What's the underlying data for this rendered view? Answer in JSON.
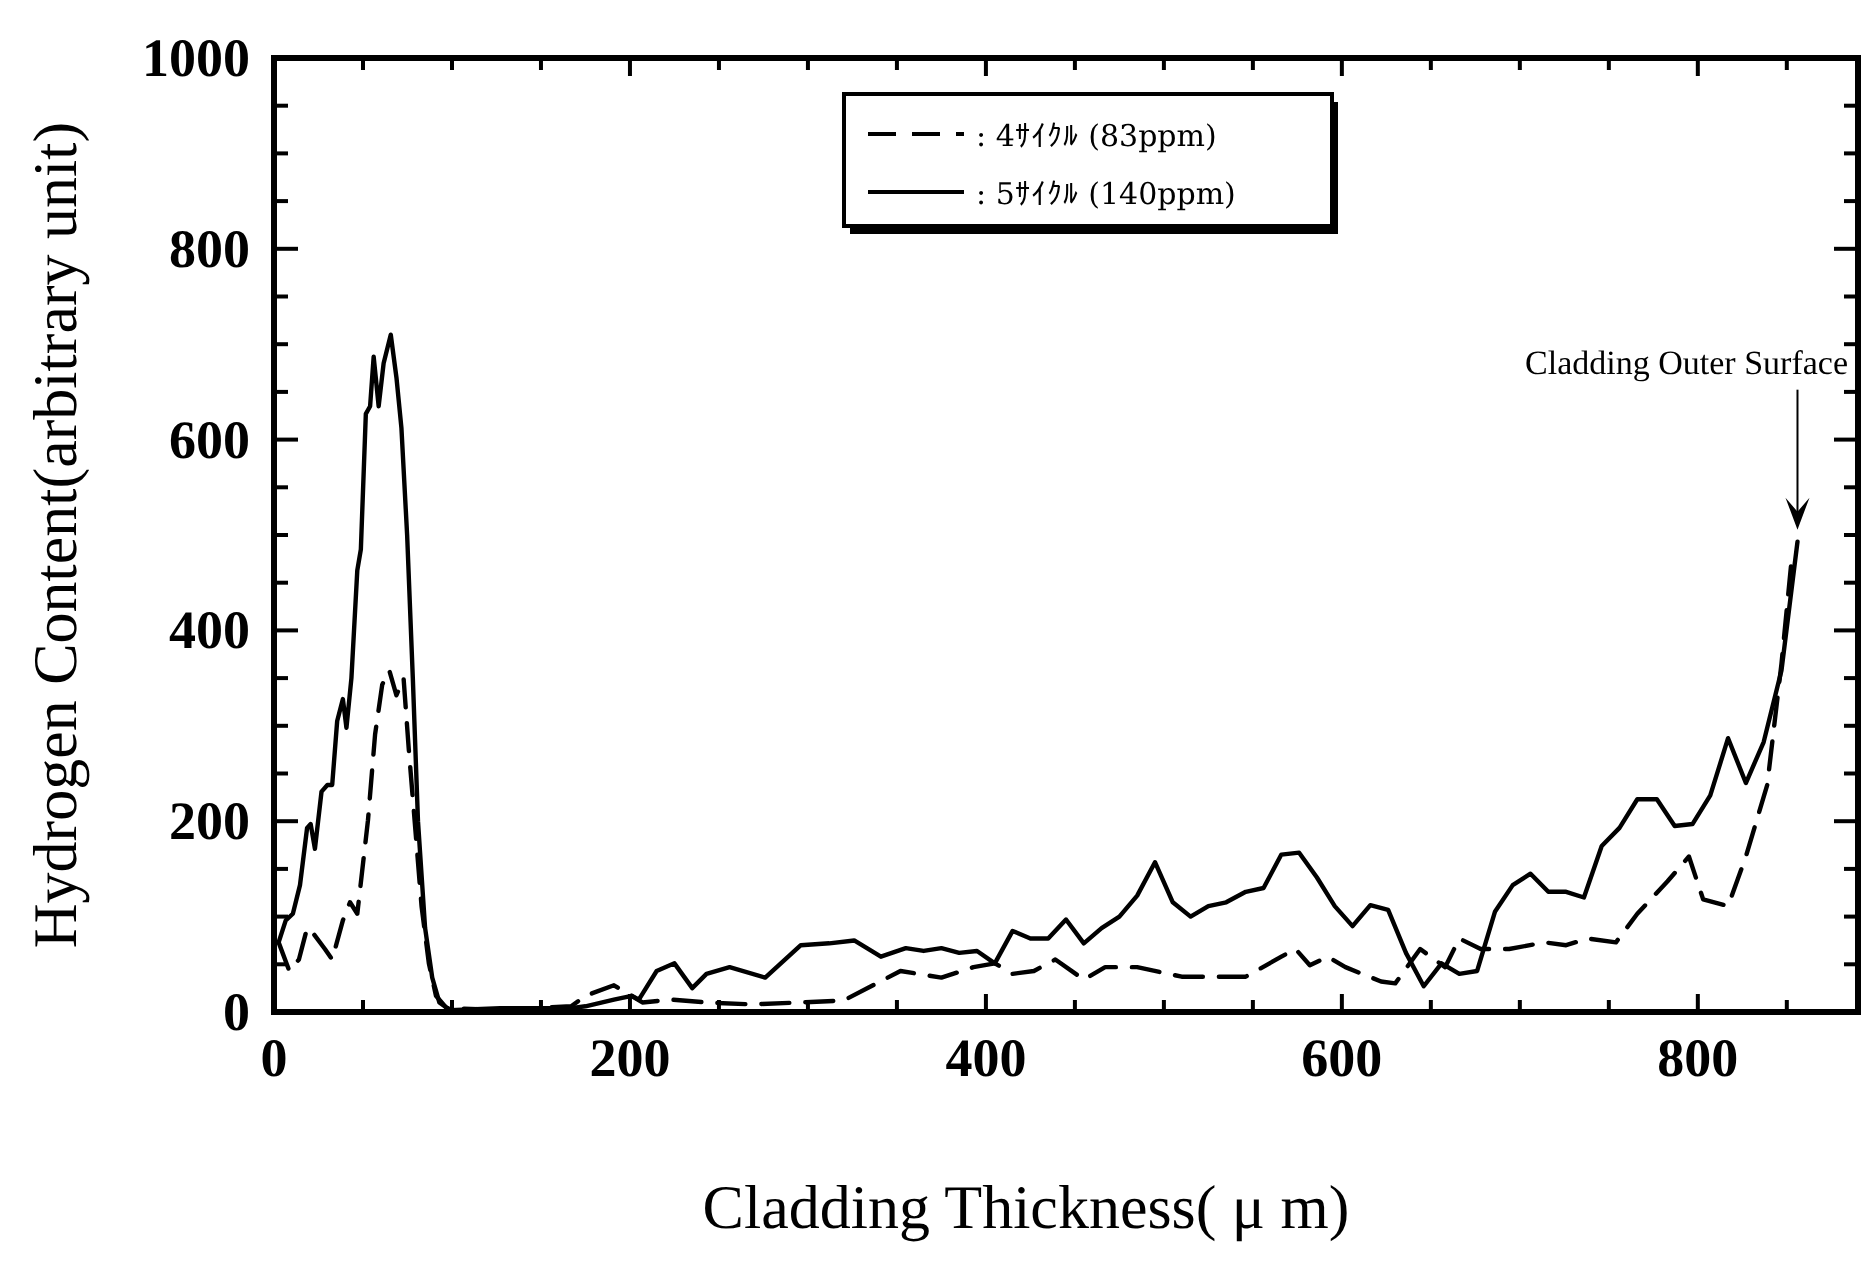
{
  "chart_data": {
    "type": "line",
    "xlabel": "Cladding Thickness( μ m)",
    "ylabel": "Hydrogen Content(arbitrary unit)",
    "xlim": [
      0,
      890
    ],
    "ylim": [
      0,
      1000
    ],
    "xticks": [
      0,
      {
        "value": 50,
        "label": null
      },
      {
        "value": 100,
        "label": null
      },
      {
        "value": 150,
        "label": null
      },
      200,
      {
        "value": 250,
        "label": null
      },
      {
        "value": 300,
        "label": null
      },
      {
        "value": 350,
        "label": null
      },
      400,
      {
        "value": 450,
        "label": null
      },
      {
        "value": 500,
        "label": null
      },
      {
        "value": 550,
        "label": null
      },
      600,
      {
        "value": 650,
        "label": null
      },
      {
        "value": 700,
        "label": null
      },
      {
        "value": 750,
        "label": null
      },
      800,
      {
        "value": 850,
        "label": null
      }
    ],
    "yticks": [
      0,
      {
        "value": 50,
        "label": null
      },
      {
        "value": 100,
        "label": null
      },
      {
        "value": 150,
        "label": null
      },
      200,
      {
        "value": 250,
        "label": null
      },
      {
        "value": 300,
        "label": null
      },
      {
        "value": 350,
        "label": null
      },
      400,
      {
        "value": 450,
        "label": null
      },
      {
        "value": 500,
        "label": null
      },
      {
        "value": 550,
        "label": null
      },
      600,
      {
        "value": 650,
        "label": null
      },
      {
        "value": 700,
        "label": null
      },
      {
        "value": 750,
        "label": null
      },
      800,
      {
        "value": 850,
        "label": null
      },
      {
        "value": 900,
        "label": null
      },
      {
        "value": 950,
        "label": null
      },
      1000
    ],
    "grid": false,
    "legend": "top",
    "marker": "none",
    "annotations": [
      {
        "text": "Cladding Outer Surface",
        "x": 856,
        "y": 493
      }
    ],
    "series": [
      {
        "name": ": 4ｻｲｸﾙ (83ppm)",
        "color": "#000000",
        "line_style": "dashed",
        "x": [
          2.6,
          8.6,
          14,
          18.6,
          22.6,
          28.6,
          32.7,
          38.7,
          42.7,
          46.8,
          52.8,
          56.8,
          60.8,
          64.8,
          68.8,
          72.8,
          75.7,
          79,
          82.9,
          87,
          91,
          97,
          127,
          167,
          175,
          191,
          207,
          223,
          243,
          268,
          296,
          320,
          352,
          375,
          393,
          405,
          415,
          427,
          439,
          455,
          467,
          485,
          510,
          546,
          566,
          574,
          582,
          592,
          602,
          622,
          630,
          644,
          658,
          666,
          678,
          694,
          714,
          726,
          738,
          754,
          766,
          783,
          795,
          803,
          817,
          827,
          839,
          847,
          853
        ],
        "values": [
          73,
          43,
          55,
          88,
          81,
          66,
          55,
          96,
          115,
          103,
          201,
          291,
          343,
          358,
          332,
          350,
          276,
          201,
          111,
          51,
          17,
          4,
          2,
          6,
          17,
          28,
          10,
          13,
          10,
          8,
          10,
          12,
          43,
          36,
          47,
          51,
          40,
          43,
          55,
          34,
          47,
          47,
          37,
          37,
          58,
          66,
          49,
          58,
          47,
          32,
          30,
          66,
          47,
          77,
          66,
          66,
          73,
          70,
          77,
          73,
          103,
          137,
          163,
          118,
          111,
          163,
          238,
          365,
          480
        ]
      },
      {
        "name": ": 5ｻｲｸﾙ (140ppm)",
        "color": "#000000",
        "line_style": "solid",
        "x": [
          2.6,
          6.6,
          10.6,
          14.6,
          18.6,
          20.6,
          23,
          26.7,
          30,
          32.7,
          35.5,
          38.7,
          40.7,
          43.5,
          46.8,
          48.8,
          51.6,
          54,
          56,
          58.8,
          61.6,
          65.6,
          68.8,
          71.6,
          74.8,
          78,
          80.9,
          84.9,
          88.9,
          92.9,
          99,
          127,
          167,
          175,
          191,
          201,
          205,
          215,
          225,
          235,
          243,
          256,
          276,
          296,
          312,
          326,
          341,
          355,
          365,
          375,
          385,
          395,
          405,
          415,
          425,
          435,
          445,
          455,
          465,
          475,
          485,
          495,
          505,
          515,
          525,
          535,
          546,
          556,
          566,
          576,
          586,
          596,
          606,
          616,
          626,
          636,
          646,
          656,
          666,
          676,
          686,
          696,
          706,
          716,
          726,
          736,
          746,
          756,
          766,
          777,
          787,
          797,
          807,
          817,
          827,
          837,
          847,
          856
        ],
        "values": [
          73,
          96,
          103,
          133,
          193,
          197,
          171,
          231,
          238,
          238,
          305,
          328,
          298,
          350,
          463,
          485,
          627,
          635,
          687,
          635,
          680,
          710,
          665,
          612,
          500,
          350,
          200,
          88,
          36,
          10,
          2,
          4,
          4,
          6,
          13,
          17,
          13,
          43,
          51,
          25,
          40,
          47,
          36,
          70,
          72,
          75,
          58,
          67,
          64,
          67,
          62,
          64,
          51,
          85,
          77,
          77,
          97,
          72,
          88,
          100,
          122,
          157,
          115,
          100,
          111,
          115,
          126,
          130,
          165,
          167,
          141,
          111,
          90,
          112,
          107,
          62,
          27,
          51,
          40,
          43,
          105,
          133,
          145,
          126,
          126,
          120,
          174,
          193,
          223,
          223,
          195,
          197,
          227,
          287,
          240,
          283,
          358,
          493
        ]
      }
    ]
  }
}
